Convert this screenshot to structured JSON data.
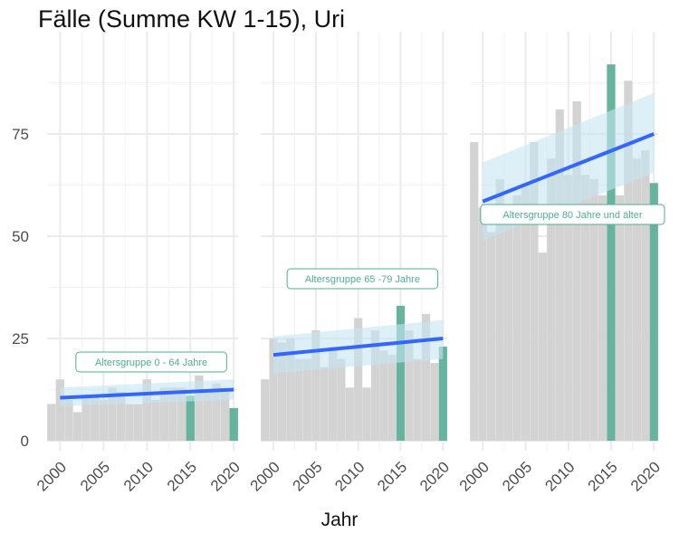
{
  "chart_data": {
    "type": "bar",
    "title": "Fälle (Summe KW 1-15), Uri",
    "xlabel": "Jahr",
    "ylabel": "",
    "ylim": [
      0,
      95
    ],
    "xlim": [
      1999,
      2020.5
    ],
    "y_ticks": [
      0,
      25,
      50,
      75
    ],
    "x_ticks": [
      2000,
      2005,
      2010,
      2015,
      2020
    ],
    "grid": true,
    "colors": {
      "bar": "#d3d3d3",
      "highlight": "#66b39e",
      "trend": "#3366ff",
      "band": "#c6e6f1",
      "annotation": "#4daf8f"
    },
    "panels": [
      {
        "annotation": "Altersgruppe 0 - 64 Jahre",
        "years": [
          1999,
          2000,
          2001,
          2002,
          2003,
          2004,
          2005,
          2006,
          2007,
          2008,
          2009,
          2010,
          2011,
          2012,
          2013,
          2014,
          2015,
          2016,
          2017,
          2018,
          2019,
          2020
        ],
        "values": [
          9,
          15,
          10,
          7,
          11,
          11,
          10,
          13,
          12,
          9,
          9,
          15,
          10,
          13,
          13,
          13,
          11,
          16,
          12,
          14,
          12,
          8
        ],
        "highlight_years": [
          2015,
          2020
        ],
        "trend": {
          "start": [
            2000,
            10.5
          ],
          "end": [
            2020,
            12.5
          ]
        },
        "band": {
          "upper": [
            [
              2000,
              13.0
            ],
            [
              2020,
              15.0
            ]
          ],
          "lower": [
            [
              2000,
              8.5
            ],
            [
              2020,
              10.0
            ]
          ]
        }
      },
      {
        "annotation": "Altersgruppe 65 -79 Jahre",
        "years": [
          1999,
          2000,
          2001,
          2002,
          2003,
          2004,
          2005,
          2006,
          2007,
          2008,
          2009,
          2010,
          2011,
          2012,
          2013,
          2014,
          2015,
          2016,
          2017,
          2018,
          2019,
          2020
        ],
        "values": [
          15,
          25,
          24,
          25,
          20,
          20,
          27,
          18,
          23,
          20,
          13,
          30,
          13,
          27,
          22,
          21,
          33,
          27,
          20,
          31,
          19,
          23
        ],
        "highlight_years": [
          2015,
          2020
        ],
        "trend": {
          "start": [
            2000,
            21.0
          ],
          "end": [
            2020,
            25.0
          ]
        },
        "band": {
          "upper": [
            [
              2000,
              25.5
            ],
            [
              2020,
              29.5
            ]
          ],
          "lower": [
            [
              2000,
              16.5
            ],
            [
              2020,
              20.0
            ]
          ]
        }
      },
      {
        "annotation": "Altersgruppe 80 Jahre und älter",
        "years": [
          1999,
          2000,
          2001,
          2002,
          2003,
          2004,
          2005,
          2006,
          2007,
          2008,
          2009,
          2010,
          2011,
          2012,
          2013,
          2014,
          2015,
          2016,
          2017,
          2018,
          2019,
          2020
        ],
        "values": [
          73,
          57,
          51,
          64,
          57,
          60,
          63,
          73,
          46,
          69,
          81,
          65,
          83,
          65,
          64,
          60,
          92,
          60,
          88,
          69,
          71,
          63
        ],
        "highlight_years": [
          2015,
          2020
        ],
        "trend": {
          "start": [
            2000,
            58.5
          ],
          "end": [
            2020,
            75.0
          ]
        },
        "band": {
          "upper": [
            [
              2000,
              68.0
            ],
            [
              2020,
              85.0
            ]
          ],
          "lower": [
            [
              2000,
              49.0
            ],
            [
              2020,
              65.5
            ]
          ]
        }
      }
    ]
  }
}
